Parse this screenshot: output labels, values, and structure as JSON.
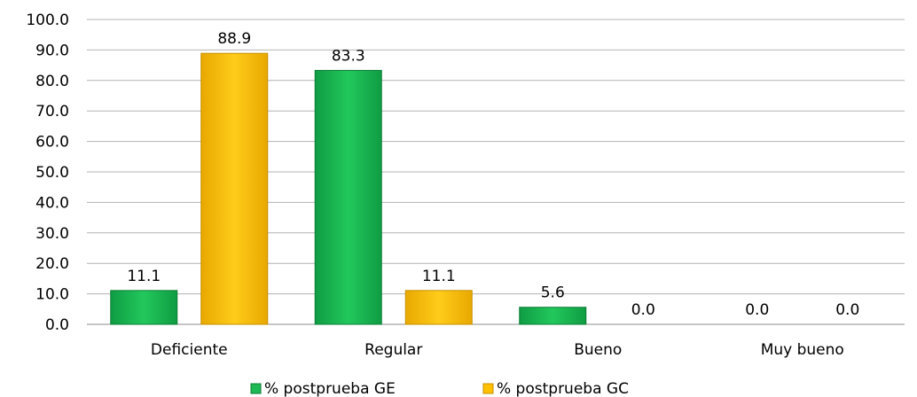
{
  "chart_data": {
    "type": "bar",
    "categories": [
      "Deficiente",
      "Regular",
      "Bueno",
      "Muy bueno"
    ],
    "series": [
      {
        "name": "% postprueba GE",
        "values": [
          11.1,
          83.3,
          5.6,
          0.0
        ],
        "color": "#1db954"
      },
      {
        "name": "% postprueba GC",
        "values": [
          88.9,
          11.1,
          0.0,
          0.0
        ],
        "color": "#ffc000"
      }
    ],
    "data_labels": [
      [
        "11.1",
        "83.3",
        "5.6",
        "0.0"
      ],
      [
        "88.9",
        "11.1",
        "0.0",
        "0.0"
      ]
    ],
    "y_ticks": [
      "0.0",
      "10.0",
      "20.0",
      "30.0",
      "40.0",
      "50.0",
      "60.0",
      "70.0",
      "80.0",
      "90.0",
      "100.0"
    ],
    "ylim": [
      0,
      100
    ],
    "grid": true,
    "legend_position": "bottom",
    "title": "",
    "xlabel": "",
    "ylabel": ""
  }
}
